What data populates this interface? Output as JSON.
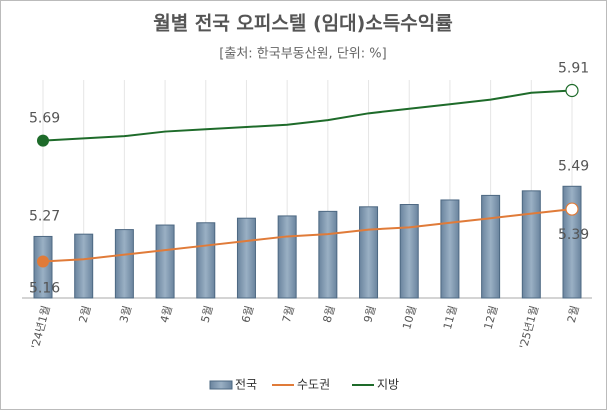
{
  "chart_data": {
    "type": "bar-line",
    "title": "월별 전국 오피스텔 (임대)소득수익률",
    "subtitle": "[출처: 한국부동산원, 단위: %]",
    "categories": [
      "'24년1월",
      "2월",
      "3월",
      "4월",
      "5월",
      "6월",
      "7월",
      "8월",
      "9월",
      "10월",
      "11월",
      "12월",
      "'25년1월",
      "2월"
    ],
    "series": [
      {
        "name": "전국",
        "type": "bar",
        "color": "#7d97b0",
        "values": [
          5.27,
          5.28,
          5.3,
          5.32,
          5.33,
          5.35,
          5.36,
          5.38,
          5.4,
          5.41,
          5.43,
          5.45,
          5.47,
          5.49
        ]
      },
      {
        "name": "수도권",
        "type": "line",
        "color": "#e07b39",
        "values": [
          5.16,
          5.17,
          5.19,
          5.21,
          5.23,
          5.25,
          5.27,
          5.28,
          5.3,
          5.31,
          5.33,
          5.35,
          5.37,
          5.39
        ]
      },
      {
        "name": "지방",
        "type": "line",
        "color": "#1e6b2a",
        "values": [
          5.69,
          5.7,
          5.71,
          5.73,
          5.74,
          5.75,
          5.76,
          5.78,
          5.81,
          5.83,
          5.85,
          5.87,
          5.9,
          5.91
        ]
      }
    ],
    "ylim": [
      5.0,
      6.0
    ]
  }
}
